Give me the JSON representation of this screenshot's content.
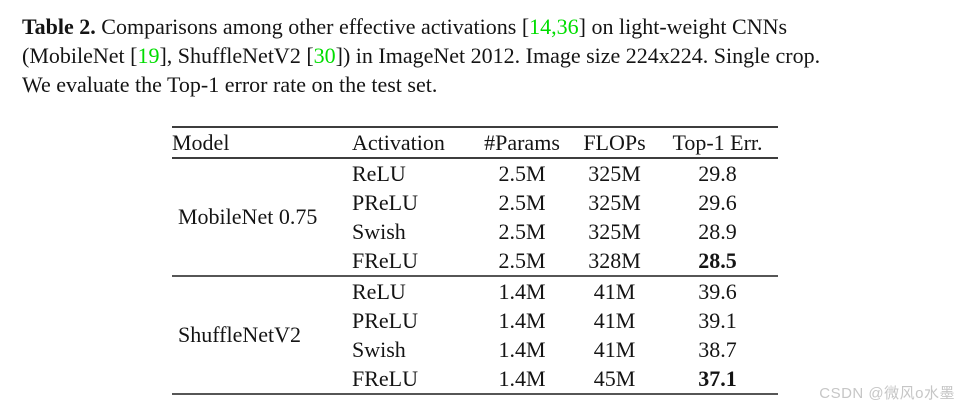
{
  "caption": {
    "line1": {
      "label": "Table 2.",
      "s1": " Comparisons among other effective activations [",
      "cite1": "14,36",
      "s2": "] on light-weight CNNs"
    },
    "line2": {
      "s1": "(MobileNet [",
      "cite1": "19",
      "s2": "], ShuffleNetV2 [",
      "cite2": "30",
      "s3": "]) in ImageNet 2012. Image size 224x224. Single crop."
    },
    "line3": {
      "s1": "We evaluate the Top-1 error rate on the test set."
    }
  },
  "table": {
    "columns": [
      "Model",
      "Activation",
      "#Params",
      "FLOPs",
      "Top-1 Err."
    ],
    "groups": [
      {
        "model": "MobileNet 0.75",
        "rows": [
          {
            "activation": "ReLU",
            "params": "2.5M",
            "flops": "325M",
            "top1": "29.8",
            "bold": false
          },
          {
            "activation": "PReLU",
            "params": "2.5M",
            "flops": "325M",
            "top1": "29.6",
            "bold": false
          },
          {
            "activation": "Swish",
            "params": "2.5M",
            "flops": "325M",
            "top1": "28.9",
            "bold": false
          },
          {
            "activation": "FReLU",
            "params": "2.5M",
            "flops": "328M",
            "top1": "28.5",
            "bold": true
          }
        ]
      },
      {
        "model": "ShuffleNetV2",
        "rows": [
          {
            "activation": "ReLU",
            "params": "1.4M",
            "flops": "41M",
            "top1": "39.6",
            "bold": false
          },
          {
            "activation": "PReLU",
            "params": "1.4M",
            "flops": "41M",
            "top1": "39.1",
            "bold": false
          },
          {
            "activation": "Swish",
            "params": "1.4M",
            "flops": "41M",
            "top1": "38.7",
            "bold": false
          },
          {
            "activation": "FReLU",
            "params": "1.4M",
            "flops": "45M",
            "top1": "37.1",
            "bold": true
          }
        ]
      }
    ]
  },
  "watermark": {
    "text": "CSDN @微风o水墨"
  },
  "colors": {
    "citation_green": "#00dd00",
    "rule_dark": "#3d3d3d",
    "rule_mid": "#565656",
    "watermark_gray": "#c6c6c6"
  }
}
